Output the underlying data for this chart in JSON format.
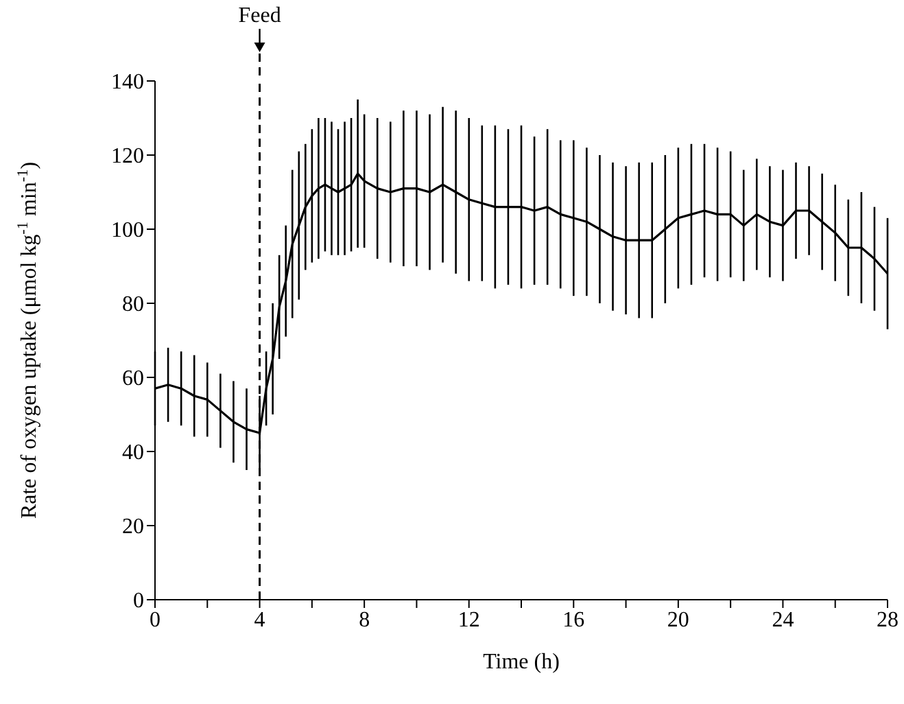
{
  "chart_data": {
    "type": "line",
    "xlabel": "Time (h)",
    "ylabel": "Rate of oxygen uptake (μmol kg$^{-1}$ min$^{-1}$)",
    "x": [
      0,
      0.5,
      1,
      1.5,
      2,
      2.5,
      3,
      3.5,
      4,
      4.25,
      4.5,
      4.75,
      5,
      5.25,
      5.5,
      5.75,
      6,
      6.25,
      6.5,
      6.75,
      7,
      7.25,
      7.5,
      7.75,
      8,
      8.5,
      9,
      9.5,
      10,
      10.5,
      11,
      11.5,
      12,
      12.5,
      13,
      13.5,
      14,
      14.5,
      15,
      15.5,
      16,
      16.5,
      17,
      17.5,
      18,
      18.5,
      19,
      19.5,
      20,
      20.5,
      21,
      21.5,
      22,
      22.5,
      23,
      23.5,
      24,
      24.5,
      25,
      25.5,
      26,
      26.5,
      27,
      27.5,
      28
    ],
    "series": [
      {
        "color": "#000000",
        "values": [
          57,
          58,
          57,
          55,
          54,
          51,
          48,
          46,
          45,
          57,
          65,
          79,
          86,
          96,
          101,
          106,
          109,
          111,
          112,
          111,
          110,
          111,
          112,
          115,
          113,
          111,
          110,
          111,
          111,
          110,
          112,
          110,
          108,
          107,
          106,
          106,
          106,
          105,
          106,
          104,
          103,
          102,
          100,
          98,
          97,
          97,
          97,
          100,
          103,
          104,
          105,
          104,
          104,
          101,
          104,
          102,
          101,
          105,
          105,
          102,
          99,
          95,
          95,
          92,
          88
        ],
        "errors": [
          10,
          10,
          10,
          11,
          10,
          10,
          11,
          11,
          10,
          10,
          15,
          14,
          15,
          20,
          20,
          17,
          18,
          19,
          18,
          18,
          17,
          18,
          18,
          20,
          18,
          19,
          19,
          21,
          21,
          21,
          21,
          22,
          22,
          21,
          22,
          21,
          22,
          20,
          21,
          20,
          21,
          20,
          20,
          20,
          20,
          21,
          21,
          20,
          19,
          19,
          18,
          18,
          17,
          15,
          15,
          15,
          15,
          13,
          12,
          13,
          13,
          13,
          15,
          14,
          15
        ]
      }
    ],
    "xlim": [
      0,
      28
    ],
    "ylim": [
      0,
      140
    ],
    "xticks": [
      0,
      {
        "value": 2,
        "label": null
      },
      4,
      {
        "value": 6,
        "label": null
      },
      8,
      {
        "value": 10,
        "label": null
      },
      12,
      {
        "value": 14,
        "label": null
      },
      16,
      {
        "value": 18,
        "label": null
      },
      20,
      {
        "value": 22,
        "label": null
      },
      24,
      {
        "value": 26,
        "label": null
      },
      28
    ],
    "yticks": [
      0,
      20,
      40,
      60,
      80,
      100,
      120,
      140
    ],
    "ref_lines": [
      {
        "axis": "x",
        "value": 4,
        "label": "Feed",
        "line_style": "dashed",
        "color": "#000000"
      }
    ],
    "line_style": "solid",
    "marker": "none"
  }
}
